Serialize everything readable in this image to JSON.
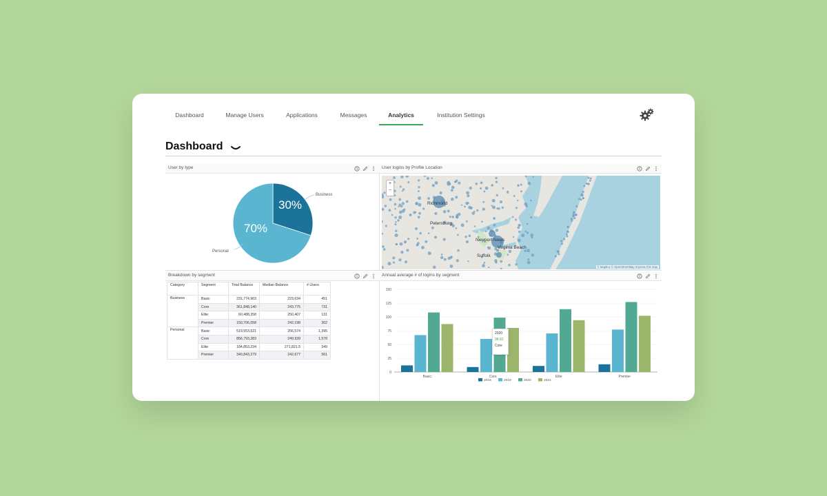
{
  "nav": {
    "tabs": [
      {
        "label": "Dashboard"
      },
      {
        "label": "Manage Users"
      },
      {
        "label": "Applications"
      },
      {
        "label": "Messages"
      },
      {
        "label": "Analytics",
        "active": true
      },
      {
        "label": "Institution Settings"
      }
    ],
    "settings_icon": "gears-icon"
  },
  "page": {
    "title": "Dashboard"
  },
  "panels": {
    "user_by_type": {
      "title": "User by type",
      "labels": {
        "business": "Business",
        "personal": "Personal"
      },
      "values": {
        "business": "30%",
        "personal": "70%"
      }
    },
    "logins_map": {
      "title": "User logins by Profile Location",
      "zoom_in": "+",
      "zoom_out": "−",
      "cities": [
        "Richmond",
        "Petersburg",
        "Newport News",
        "Virginia Beach",
        "Suffolk"
      ],
      "attribution": "© Mapbox © OpenStreetMap Improve this map"
    },
    "breakdown": {
      "title": "Breakdown by segment",
      "columns": [
        "Category",
        "Segment",
        "Total Balance",
        "Median Balance",
        "# Users"
      ],
      "groups": [
        {
          "category": "Business",
          "rows": [
            [
              "Basic",
              "231,774,963",
              "223,634",
              "451"
            ],
            [
              "Core",
              "361,848,140",
              "243,775",
              "731"
            ],
            [
              "Elite",
              "60,488,358",
              "250,407",
              "131"
            ],
            [
              "Premier",
              "150,706,058",
              "242,198",
              "302"
            ]
          ]
        },
        {
          "category": "Personal",
          "rows": [
            [
              "Basic",
              "519,553,621",
              "256,574",
              "1,395"
            ],
            [
              "Core",
              "856,793,383",
              "249,939",
              "1,578"
            ],
            [
              "Elite",
              "184,853,234",
              "271,821.5",
              "349"
            ],
            [
              "Premier",
              "340,843,279",
              "242,677",
              "561"
            ]
          ]
        }
      ]
    },
    "annual_logins": {
      "title": "Annual average # of logins by segment",
      "tooltip": {
        "year": "2020",
        "value": "98.62",
        "segment": "Core"
      }
    }
  },
  "chart_data": [
    {
      "type": "pie",
      "labels": [
        "Business",
        "Personal"
      ],
      "values": [
        30,
        70
      ],
      "colors": [
        "#1b7399",
        "#5ab6d0"
      ]
    },
    {
      "type": "bar",
      "categories": [
        "Basic",
        "Core",
        "Elite",
        "Premier"
      ],
      "series": [
        {
          "name": "2018",
          "color": "#1b7399",
          "values": [
            12,
            9,
            11,
            14
          ]
        },
        {
          "name": "2019",
          "color": "#5ab6d0",
          "values": [
            67,
            60,
            70,
            77
          ]
        },
        {
          "name": "2020",
          "color": "#52a993",
          "values": [
            108,
            98.62,
            114,
            127
          ]
        },
        {
          "name": "2021",
          "color": "#9bb56a",
          "values": [
            87,
            80,
            94,
            102
          ]
        }
      ],
      "yticks": [
        0,
        25,
        50,
        75,
        100,
        125,
        150
      ],
      "ylim": [
        0,
        150
      ],
      "legend": "bottom"
    }
  ]
}
